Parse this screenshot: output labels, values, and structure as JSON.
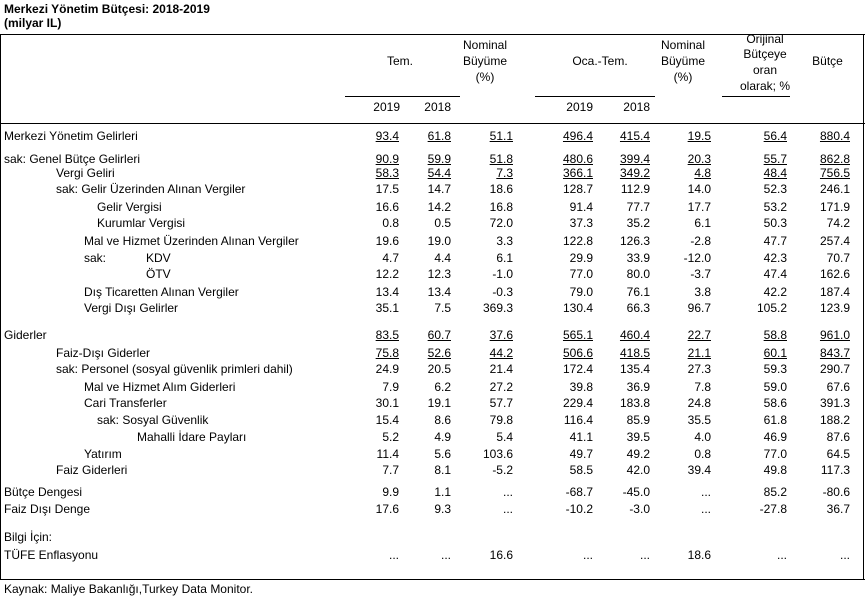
{
  "title": "Merkezi Yönetim Bütçesi: 2018-2019",
  "subtitle": "(milyar IL)",
  "headers": {
    "tem": "Tem.",
    "nominal1": [
      "Nominal",
      "Büyüme",
      "(%)"
    ],
    "octem": "Oca.-Tem.",
    "nominal2": [
      "Nominal",
      "Büyüme",
      "(%)"
    ],
    "orijinal": [
      "Orijinal",
      "Bütçeye",
      "oran",
      "olarak; %"
    ],
    "butce": "Bütçe",
    "y2019a": "2019",
    "y2018a": "2018",
    "y2019b": "2019",
    "y2018b": "2018"
  },
  "rows": [
    {
      "label": "Merkezi Yönetim Gelirleri",
      "v": [
        "93.4",
        "61.8",
        "51.1",
        "496.4",
        "415.4",
        "19.5",
        "56.4",
        "880.4"
      ],
      "u": true
    },
    {
      "label": "sak:  Genel Bütçe Gelirleri",
      "v": [
        "90.9",
        "59.9",
        "51.8",
        "480.6",
        "399.4",
        "20.3",
        "55.7",
        "862.8"
      ],
      "u": true
    },
    {
      "label": "Vergi Geliri",
      "v": [
        "58.3",
        "54.4",
        "7.3",
        "366.1",
        "349.2",
        "4.8",
        "48.4",
        "756.5"
      ],
      "u": true
    },
    {
      "label": "sak:  Gelir Üzerinden Alınan Vergiler",
      "v": [
        "17.5",
        "14.7",
        "18.6",
        "128.7",
        "112.9",
        "14.0",
        "52.3",
        "246.1"
      ]
    },
    {
      "label": "Gelir Vergisi",
      "v": [
        "16.6",
        "14.2",
        "16.8",
        "91.4",
        "77.7",
        "17.7",
        "53.2",
        "171.9"
      ]
    },
    {
      "label": "Kurumlar Vergisi",
      "v": [
        "0.8",
        "0.5",
        "72.0",
        "37.3",
        "35.2",
        "6.1",
        "50.3",
        "74.2"
      ]
    },
    {
      "label": "Mal ve Hizmet Üzerinden Alınan Vergiler",
      "v": [
        "19.6",
        "19.0",
        "3.3",
        "122.8",
        "126.3",
        "-2.8",
        "47.7",
        "257.4"
      ]
    },
    {
      "label": "sak:",
      "label2": "KDV",
      "v": [
        "4.7",
        "4.4",
        "6.1",
        "29.9",
        "33.9",
        "-12.0",
        "42.3",
        "70.7"
      ]
    },
    {
      "label": "",
      "label2": "ÖTV",
      "v": [
        "12.2",
        "12.3",
        "-1.0",
        "77.0",
        "80.0",
        "-3.7",
        "47.4",
        "162.6"
      ]
    },
    {
      "label": "Dış Ticaretten Alınan Vergiler",
      "v": [
        "13.4",
        "13.4",
        "-0.3",
        "79.0",
        "76.1",
        "3.8",
        "42.2",
        "187.4"
      ]
    },
    {
      "label": "Vergi Dışı Gelirler",
      "v": [
        "35.1",
        "7.5",
        "369.3",
        "130.4",
        "66.3",
        "96.7",
        "105.2",
        "123.9"
      ]
    },
    {
      "label": "Giderler",
      "v": [
        "83.5",
        "60.7",
        "37.6",
        "565.1",
        "460.4",
        "22.7",
        "58.8",
        "961.0"
      ],
      "u": true
    },
    {
      "label": "Faiz-Dışı Giderler",
      "v": [
        "75.8",
        "52.6",
        "44.2",
        "506.6",
        "418.5",
        "21.1",
        "60.1",
        "843.7"
      ],
      "u": true
    },
    {
      "label": "sak:  Personel (sosyal güvenlik primleri dahil)",
      "v": [
        "24.9",
        "20.5",
        "21.4",
        "172.4",
        "135.4",
        "27.3",
        "59.3",
        "290.7"
      ]
    },
    {
      "label": "Mal ve Hizmet Alım Giderleri",
      "v": [
        "7.9",
        "6.2",
        "27.2",
        "39.8",
        "36.9",
        "7.8",
        "59.0",
        "67.6"
      ]
    },
    {
      "label": "Cari Transferler",
      "v": [
        "30.1",
        "19.1",
        "57.7",
        "229.4",
        "183.8",
        "24.8",
        "58.6",
        "391.3"
      ]
    },
    {
      "label": "sak:  Sosyal Güvenlik",
      "v": [
        "15.4",
        "8.6",
        "79.8",
        "116.4",
        "85.9",
        "35.5",
        "61.8",
        "188.2"
      ]
    },
    {
      "label": "Mahalli İdare Payları",
      "v": [
        "5.2",
        "4.9",
        "5.4",
        "41.1",
        "39.5",
        "4.0",
        "46.9",
        "87.6"
      ]
    },
    {
      "label": "Yatırım",
      "v": [
        "11.4",
        "5.6",
        "103.6",
        "49.7",
        "49.2",
        "0.8",
        "77.0",
        "64.5"
      ]
    },
    {
      "label": "Faiz Giderleri",
      "v": [
        "7.7",
        "8.1",
        "-5.2",
        "58.5",
        "42.0",
        "39.4",
        "49.8",
        "117.3"
      ]
    },
    {
      "label": "Bütçe Dengesi",
      "v": [
        "9.9",
        "1.1",
        "...",
        "-68.7",
        "-45.0",
        "...",
        "85.2",
        "-80.6"
      ]
    },
    {
      "label": "Faiz Dışı Denge",
      "v": [
        "17.6",
        "9.3",
        "...",
        "-10.2",
        "-3.0",
        "...",
        "-27.8",
        "36.7"
      ]
    },
    {
      "label": "Bilgi İçin:",
      "v": [
        "",
        "",
        "",
        "",
        "",
        "",
        "",
        ""
      ]
    },
    {
      "label": "TÜFE Enflasyonu",
      "v": [
        "...",
        "...",
        "16.6",
        "...",
        "...",
        "18.6",
        "...",
        "..."
      ]
    }
  ],
  "source": "Kaynak: Maliye Bakanlığı,Turkey Data Monitor."
}
